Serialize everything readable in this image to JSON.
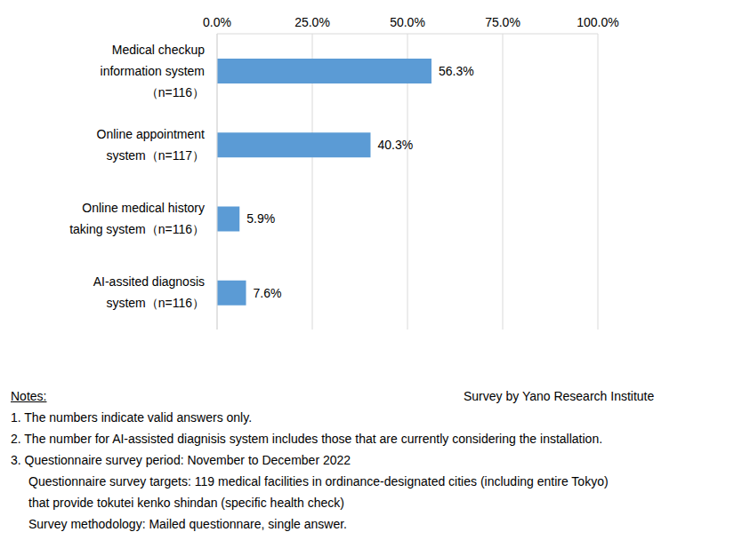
{
  "chart_data": {
    "type": "bar",
    "orientation": "horizontal",
    "categories": [
      "Medical checkup\ninformation system\n（n=116）",
      "Online appointment\nsystem（n=117）",
      "Online medical history\ntaking system（n=116）",
      "AI-assited diagnosis\nsystem（n=116）"
    ],
    "values": [
      56.3,
      40.3,
      5.9,
      7.6
    ],
    "value_labels": [
      "56.3%",
      "40.3%",
      "5.9%",
      "7.6%"
    ],
    "data_labels": true,
    "color": "#5b9bd5",
    "xlim": [
      0,
      100
    ],
    "xticks": [
      {
        "value": 0,
        "label": "0.0%"
      },
      {
        "value": 25,
        "label": "25.0%"
      },
      {
        "value": 50,
        "label": "50.0%"
      },
      {
        "value": 75,
        "label": "75.0%"
      },
      {
        "value": 100,
        "label": "100.0%"
      }
    ],
    "grid": true,
    "notes_title": "Notes:",
    "source": "Survey by Yano Research Institute",
    "notes": [
      [
        "1. The numbers indicate valid answers only."
      ],
      [
        "2. The number for AI-assisted diagnisis system includes those that are currently considering the installation."
      ],
      [
        "3. Questionnaire survey period: November to December 2022",
        "Questionnaire survey targets: 119 medical facilities in ordinance-designated cities (including entire Tokyo)",
        "that provide tokutei kenko shindan (specific health check)",
        "Survey methodology: Mailed questionnare, single answer."
      ]
    ]
  }
}
